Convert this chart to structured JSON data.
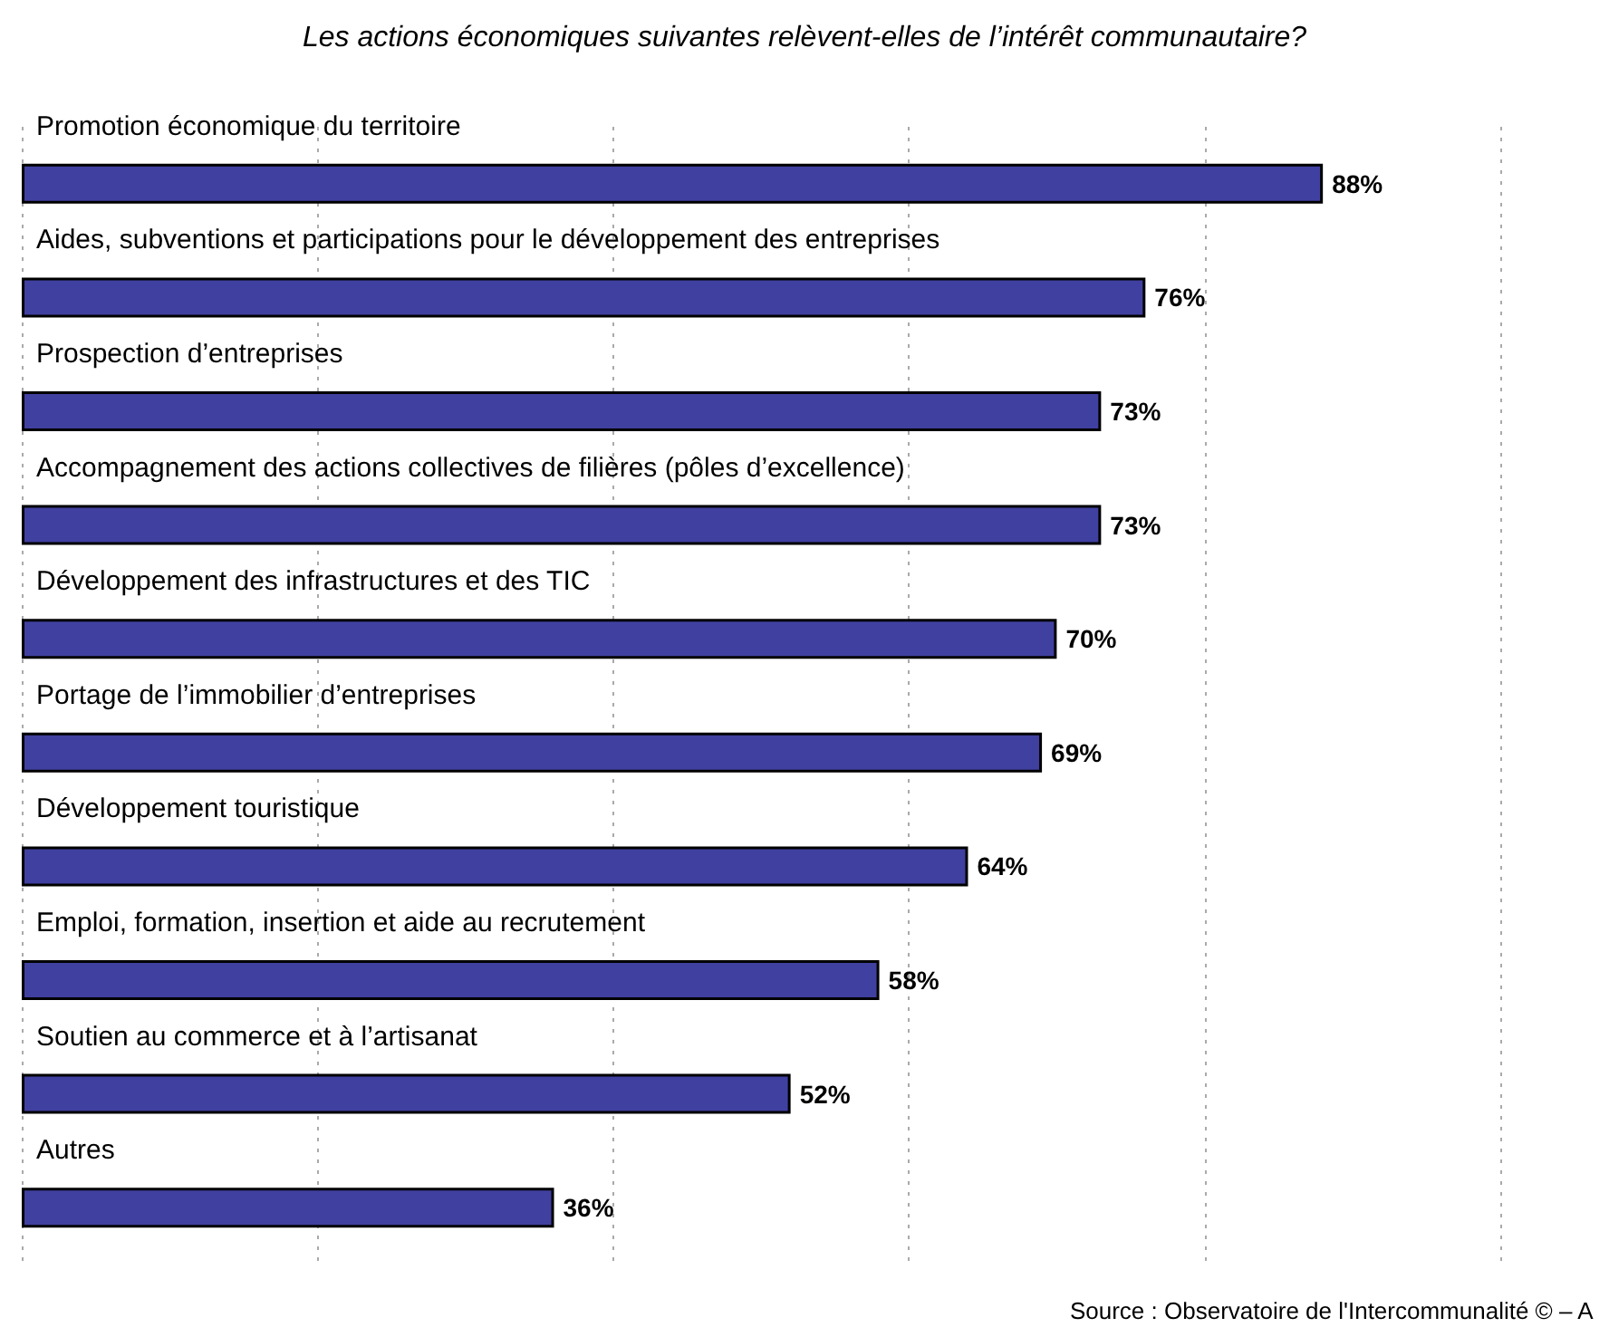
{
  "chart_data": {
    "type": "bar",
    "orientation": "horizontal",
    "title": "Les actions économiques suivantes relèvent-elles de l’intérêt communautaire?",
    "categories": [
      "Promotion économique du territoire",
      "Aides, subventions et participations pour le développement des entreprises",
      "Prospection d’entreprises",
      "Accompagnement des actions collectives de filières (pôles d’excellence)",
      "Développement des infrastructures et des TIC",
      "Portage de l’immobilier d’entreprises",
      "Développement touristique",
      "Emploi, formation, insertion et aide au recrutement",
      "Soutien au commerce et à l’artisanat",
      "Autres"
    ],
    "values": [
      88,
      76,
      73,
      73,
      70,
      69,
      64,
      58,
      52,
      36
    ],
    "value_labels": [
      "88%",
      "76%",
      "73%",
      "73%",
      "70%",
      "69%",
      "64%",
      "58%",
      "52%",
      "36%"
    ],
    "color": "#4040a0",
    "xlim": [
      0,
      100
    ],
    "xticks": [
      {
        "value": 0,
        "label": null
      },
      {
        "value": 20,
        "label": null
      },
      {
        "value": 40,
        "label": null
      },
      {
        "value": 60,
        "label": null
      },
      {
        "value": 80,
        "label": null
      },
      {
        "value": 100,
        "label": null
      }
    ],
    "grid": "x",
    "annotations": [
      "Source : Observatoire de l'Intercommunalité © – A"
    ]
  }
}
